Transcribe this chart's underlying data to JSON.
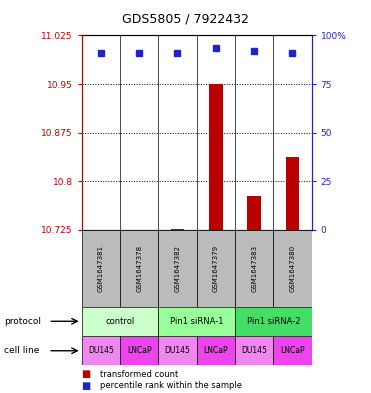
{
  "title": "GDS5805 / 7922432",
  "samples": [
    "GSM1647381",
    "GSM1647378",
    "GSM1647382",
    "GSM1647379",
    "GSM1647383",
    "GSM1647380"
  ],
  "red_values": [
    10.7255,
    10.7255,
    10.7265,
    10.95,
    10.778,
    10.838
  ],
  "blue_values": [
    10.998,
    10.998,
    10.998,
    11.005,
    11.001,
    10.998
  ],
  "ylim": [
    10.725,
    11.025
  ],
  "yticks": [
    10.725,
    10.8,
    10.875,
    10.95,
    11.025
  ],
  "ytick_labels": [
    "10.725",
    "10.8",
    "10.875",
    "10.95",
    "11.025"
  ],
  "y2ticks": [
    0,
    25,
    50,
    75,
    100
  ],
  "y2tick_labels": [
    "0",
    "25",
    "50",
    "75",
    "100%"
  ],
  "y2lim": [
    0,
    100
  ],
  "gridlines": [
    10.8,
    10.875,
    10.95
  ],
  "protocol_groups": [
    {
      "label": "control",
      "span": [
        0,
        2
      ],
      "color": "#ccffcc"
    },
    {
      "label": "Pin1 siRNA-1",
      "span": [
        2,
        4
      ],
      "color": "#99ff99"
    },
    {
      "label": "Pin1 siRNA-2",
      "span": [
        4,
        6
      ],
      "color": "#44dd66"
    }
  ],
  "cell_lines": [
    {
      "label": "DU145",
      "color": "#ee88ee"
    },
    {
      "label": "LNCaP",
      "color": "#ee44ee"
    },
    {
      "label": "DU145",
      "color": "#ee88ee"
    },
    {
      "label": "LNCaP",
      "color": "#ee44ee"
    },
    {
      "label": "DU145",
      "color": "#ee88ee"
    },
    {
      "label": "LNCaP",
      "color": "#ee44ee"
    }
  ],
  "red_color": "#bb0000",
  "blue_color": "#2222cc",
  "bar_base": 10.725,
  "legend_red": "transformed count",
  "legend_blue": "percentile rank within the sample",
  "protocol_label": "protocol",
  "cell_line_label": "cell line",
  "sample_box_color": "#bbbbbb"
}
